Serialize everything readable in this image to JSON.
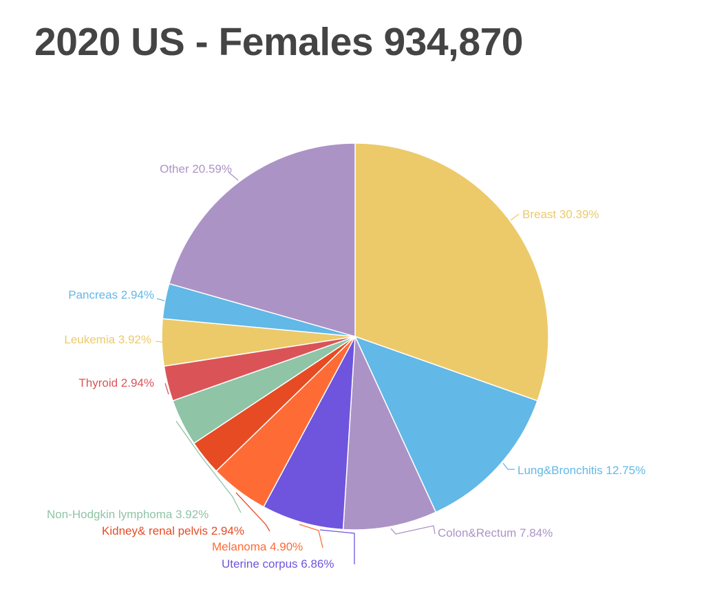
{
  "title": "2020 US - Females 934,870",
  "chart_data": {
    "type": "pie",
    "title": "2020 US - Females 934,870",
    "start_angle_deg": 0,
    "direction": "clockwise",
    "legend": "none",
    "slices": [
      {
        "name": "Breast",
        "value": 30.39,
        "label": "Breast 30.39%",
        "color": "#ECCA6A"
      },
      {
        "name": "Lung&Bronchitis",
        "value": 12.75,
        "label": "Lung&Bronchitis 12.75%",
        "color": "#62B8E6"
      },
      {
        "name": "Colon&Rectum",
        "value": 7.84,
        "label": "Colon&Rectum 7.84%",
        "color": "#AC93C6"
      },
      {
        "name": "Uterine corpus",
        "value": 6.86,
        "label": "Uterine corpus 6.86%",
        "color": "#6F54DE"
      },
      {
        "name": "Melanoma",
        "value": 4.9,
        "label": "Melanoma 4.90%",
        "color": "#FF6B35"
      },
      {
        "name": "Kidney& renal pelvis",
        "value": 2.94,
        "label": "Kidney& renal pelvis 2.94%",
        "color": "#E64B23"
      },
      {
        "name": "Non-Hodgkin lymphoma",
        "value": 3.92,
        "label": "Non-Hodgkin lymphoma 3.92%",
        "color": "#8FC4A6"
      },
      {
        "name": "Thyroid",
        "value": 2.94,
        "label": "Thyroid 2.94%",
        "color": "#DA5457"
      },
      {
        "name": "Leukemia",
        "value": 3.92,
        "label": "Leukemia 3.92%",
        "color": "#ECCA6A"
      },
      {
        "name": "Pancreas",
        "value": 2.94,
        "label": "Pancreas 2.94%",
        "color": "#62B8E6"
      },
      {
        "name": "Other",
        "value": 20.59,
        "label": "Other 20.59%",
        "color": "#AC93C6"
      }
    ]
  }
}
